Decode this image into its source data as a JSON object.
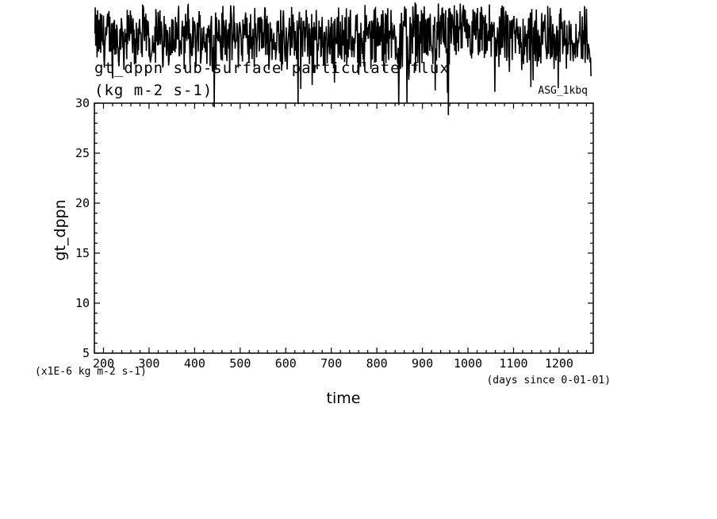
{
  "chart_data": {
    "type": "line",
    "title": "gt_dppn sub-surface particulate flux",
    "units": "(kg m-2 s-1)",
    "run_label": "ASG_1kbq",
    "ylabel": "gt_dppn",
    "xlabel": "time",
    "x_units": "(days since 0-01-01)",
    "y_scale_note": "(x1E-6 kg m-2 s-1)",
    "xlim": [
      180,
      1275
    ],
    "ylim": [
      5,
      30
    ],
    "xticks": [
      200,
      300,
      400,
      500,
      600,
      700,
      800,
      900,
      1000,
      1100,
      1200
    ],
    "yticks": [
      5,
      10,
      15,
      20,
      25,
      30
    ],
    "grid": false,
    "series": [
      {
        "x_start": 181,
        "x_step": 1,
        "seed_note": "noisy daily series, values mostly between 33 and 40 (x1E-6), occasional dips near 29",
        "values_summary": {
          "min": 28.8,
          "max": 40.3,
          "mean": 36.8
        }
      }
    ],
    "color": "#000000"
  }
}
